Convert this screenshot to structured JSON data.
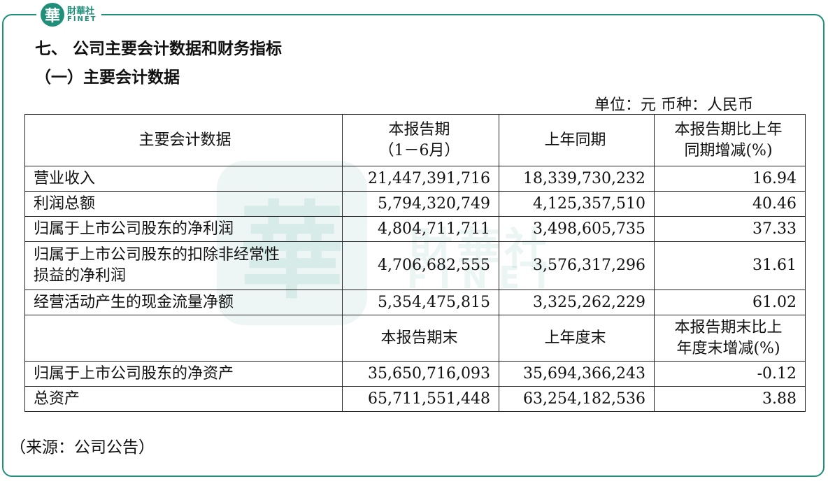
{
  "logo": {
    "seal": "華",
    "cn": "財華社",
    "en": "FINET"
  },
  "headings": {
    "section": "七、  公司主要会计数据和财务指标",
    "subsection": "（一）主要会计数据"
  },
  "unit_line": "单位：元    币种：人民币",
  "table": {
    "header": {
      "col1": "主要会计数据",
      "col2_line1": "本报告期",
      "col2_line2": "（1－6月）",
      "col3": "上年同期",
      "col4_line1": "本报告期比上年",
      "col4_line2": "同期增减(%)"
    },
    "rows": [
      {
        "label": "营业收入",
        "current": "21,447,391,716",
        "prior": "18,339,730,232",
        "change": "16.94"
      },
      {
        "label": "利润总额",
        "current": "5,794,320,749",
        "prior": "4,125,357,510",
        "change": "40.46"
      },
      {
        "label": "归属于上市公司股东的净利润",
        "current": "4,804,711,711",
        "prior": "3,498,605,735",
        "change": "37.33"
      },
      {
        "label_line1": "归属于上市公司股东的扣除非经常性",
        "label_line2": "损益的净利润",
        "current": "4,706,682,555",
        "prior": "3,576,317,296",
        "change": "31.61"
      },
      {
        "label": "经营活动产生的现金流量净额",
        "current": "5,354,475,815",
        "prior": "3,325,262,229",
        "change": "61.02"
      }
    ],
    "header2": {
      "col1": "",
      "col2": "本报告期末",
      "col3": "上年度末",
      "col4_line1": "本报告期末比上",
      "col4_line2": "年度末增减(%)"
    },
    "rows2": [
      {
        "label": "归属于上市公司股东的净资产",
        "current": "35,650,716,093",
        "prior": "35,694,366,243",
        "change": "-0.12"
      },
      {
        "label": "总资产",
        "current": "65,711,551,448",
        "prior": "63,254,182,536",
        "change": "3.88"
      }
    ]
  },
  "source": "（来源：公司公告）",
  "colors": {
    "accent": "#1f8f7a"
  }
}
